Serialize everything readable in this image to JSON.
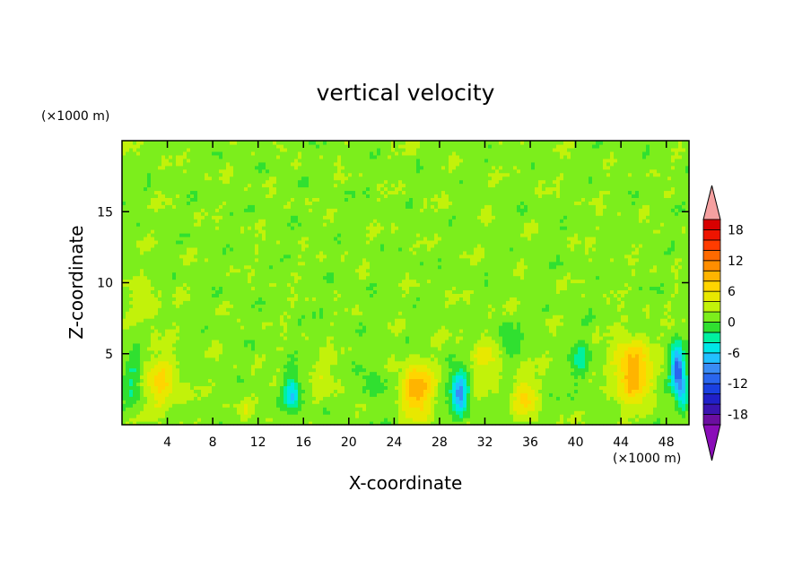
{
  "chart_data": {
    "type": "heatmap",
    "title": "vertical velocity",
    "xlabel": "X-coordinate",
    "ylabel": "Z-coordinate",
    "x_unit": "(×1000 m)",
    "z_unit": "(×1000 m)",
    "xlim": [
      0,
      50
    ],
    "ylim": [
      0,
      20
    ],
    "x_ticks": [
      4,
      8,
      12,
      16,
      20,
      24,
      28,
      32,
      36,
      40,
      44,
      48
    ],
    "y_ticks": [
      5,
      10,
      15
    ],
    "colorbar": {
      "levels": [
        -20,
        -18,
        -16,
        -14,
        -12,
        -10,
        -8,
        -6,
        -4,
        -2,
        0,
        2,
        4,
        6,
        8,
        10,
        12,
        14,
        16,
        18,
        20
      ],
      "tick_labels": [
        "18",
        "12",
        "6",
        "0",
        "-6",
        "-12",
        "-18"
      ],
      "tick_values": [
        18,
        12,
        6,
        0,
        -6,
        -12,
        -18
      ],
      "colors": [
        "#6b0ea0",
        "#3a14b0",
        "#2020c8",
        "#1a40e0",
        "#2a66ee",
        "#3a8cf5",
        "#22c0ff",
        "#00e6e6",
        "#00f0a0",
        "#30e030",
        "#7cee1c",
        "#c2f20a",
        "#e8e800",
        "#ffd500",
        "#ffb400",
        "#ff8e00",
        "#ff6a00",
        "#ff3c00",
        "#ee1400",
        "#d80000"
      ],
      "below_color": "#8a0db8",
      "above_color": "#f5a0a0"
    },
    "features": [
      {
        "x": 3.5,
        "z": 3.0,
        "amp": 5.0,
        "sx": 1.5,
        "sz": 2.0
      },
      {
        "x": 2.0,
        "z": 8.5,
        "amp": 3.2,
        "sx": 1.1,
        "sz": 1.3
      },
      {
        "x": 1.0,
        "z": 3.0,
        "amp": -3.5,
        "sx": 0.8,
        "sz": 2.0
      },
      {
        "x": 10.8,
        "z": 1.0,
        "amp": 3.0,
        "sx": 0.5,
        "sz": 0.6
      },
      {
        "x": 15.0,
        "z": 2.2,
        "amp": -7.0,
        "sx": 0.7,
        "sz": 1.3
      },
      {
        "x": 18.0,
        "z": 3.5,
        "amp": 2.3,
        "sx": 1.1,
        "sz": 1.4
      },
      {
        "x": 22.0,
        "z": 3.0,
        "amp": -2.2,
        "sx": 1.2,
        "sz": 1.5
      },
      {
        "x": 26.0,
        "z": 2.5,
        "amp": 8.5,
        "sx": 1.4,
        "sz": 1.8
      },
      {
        "x": 29.8,
        "z": 2.3,
        "amp": -10.0,
        "sx": 0.8,
        "sz": 1.5
      },
      {
        "x": 32.0,
        "z": 4.5,
        "amp": 3.0,
        "sx": 1.5,
        "sz": 1.8
      },
      {
        "x": 35.5,
        "z": 2.0,
        "amp": 5.0,
        "sx": 1.0,
        "sz": 1.5
      },
      {
        "x": 34.0,
        "z": 6.0,
        "amp": -3.5,
        "sx": 0.8,
        "sz": 1.2
      },
      {
        "x": 40.5,
        "z": 4.5,
        "amp": -3.8,
        "sx": 0.8,
        "sz": 1.6
      },
      {
        "x": 45.0,
        "z": 3.8,
        "amp": 8.5,
        "sx": 1.6,
        "sz": 2.2
      },
      {
        "x": 49.0,
        "z": 4.0,
        "amp": -13.0,
        "sx": 0.6,
        "sz": 1.5
      },
      {
        "x": 49.5,
        "z": 2.0,
        "amp": -6.0,
        "sx": 0.6,
        "sz": 1.2
      }
    ]
  }
}
